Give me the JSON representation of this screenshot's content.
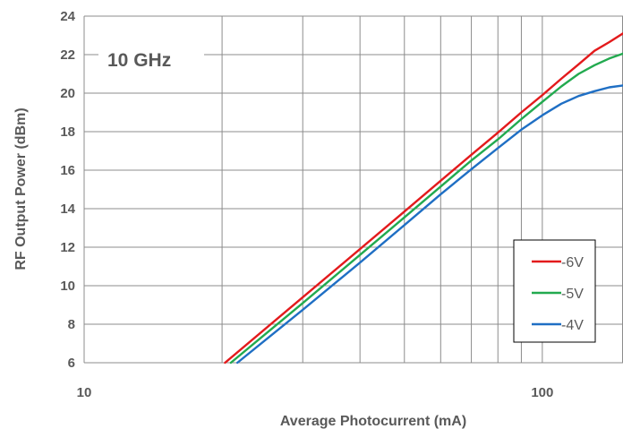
{
  "chart_data": {
    "type": "line",
    "xscale": "log",
    "xlim": [
      10,
      150
    ],
    "ylim": [
      6,
      24
    ],
    "xlabel": "Average Photocurrent (mA)",
    "ylabel": "RF Output Power (dBm)",
    "annotation": "10 GHz",
    "xticks": [
      10,
      100
    ],
    "xtick_labels": [
      "10",
      "100"
    ],
    "yticks": [
      6,
      8,
      10,
      12,
      14,
      16,
      18,
      20,
      22,
      24
    ],
    "ytick_labels": [
      "6",
      "8",
      "10",
      "12",
      "14",
      "16",
      "18",
      "20",
      "22",
      "24"
    ],
    "x_minor_gridlines": [
      20,
      30,
      40,
      50,
      60,
      70,
      80,
      90,
      150
    ],
    "grid": true,
    "legend_position": "bottom-right",
    "series": [
      {
        "name": "-6V",
        "color": "#e31a1c",
        "points": [
          [
            20.3,
            6.0
          ],
          [
            30,
            9.4
          ],
          [
            40,
            11.9
          ],
          [
            50,
            13.85
          ],
          [
            60,
            15.45
          ],
          [
            70,
            16.8
          ],
          [
            80,
            17.95
          ],
          [
            90,
            19.0
          ],
          [
            100,
            19.9
          ],
          [
            110,
            20.75
          ],
          [
            120,
            21.5
          ],
          [
            130,
            22.2
          ],
          [
            140,
            22.65
          ],
          [
            150,
            23.1
          ],
          [
            155,
            23.15
          ]
        ]
      },
      {
        "name": "-5V",
        "color": "#22aa4f",
        "points": [
          [
            20.9,
            6.0
          ],
          [
            30,
            9.1
          ],
          [
            40,
            11.6
          ],
          [
            50,
            13.55
          ],
          [
            60,
            15.15
          ],
          [
            70,
            16.5
          ],
          [
            80,
            17.6
          ],
          [
            90,
            18.65
          ],
          [
            100,
            19.55
          ],
          [
            110,
            20.35
          ],
          [
            120,
            21.0
          ],
          [
            130,
            21.45
          ],
          [
            140,
            21.8
          ],
          [
            150,
            22.05
          ],
          [
            155,
            22.15
          ]
        ]
      },
      {
        "name": "-4V",
        "color": "#1f6fc4",
        "points": [
          [
            21.6,
            6.0
          ],
          [
            30,
            8.75
          ],
          [
            40,
            11.2
          ],
          [
            50,
            13.15
          ],
          [
            60,
            14.75
          ],
          [
            70,
            16.05
          ],
          [
            80,
            17.15
          ],
          [
            90,
            18.1
          ],
          [
            100,
            18.85
          ],
          [
            110,
            19.45
          ],
          [
            120,
            19.85
          ],
          [
            130,
            20.1
          ],
          [
            140,
            20.3
          ],
          [
            150,
            20.4
          ],
          [
            155,
            20.4
          ]
        ]
      }
    ]
  }
}
